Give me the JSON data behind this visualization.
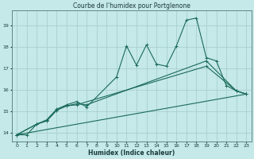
{
  "bg_color": "#c5e8e8",
  "grid_color": "#a8d0d0",
  "line_color": "#1a6b5a",
  "title": "Courbe de l'humidex pour Portglenone",
  "xlabel": "Humidex (Indice chaleur)",
  "xlim": [
    -0.5,
    23.5
  ],
  "ylim": [
    13.6,
    19.7
  ],
  "yticks": [
    14,
    15,
    16,
    17,
    18,
    19
  ],
  "xticks": [
    0,
    1,
    2,
    3,
    4,
    5,
    6,
    7,
    8,
    9,
    10,
    11,
    12,
    13,
    14,
    15,
    16,
    17,
    18,
    19,
    20,
    21,
    22,
    23
  ],
  "line1_x": [
    0,
    1,
    2,
    3,
    4,
    5,
    6,
    7,
    10,
    11,
    12,
    13,
    14,
    15,
    16,
    17,
    18,
    19,
    20,
    21,
    22,
    23
  ],
  "line1_y": [
    13.9,
    13.9,
    14.4,
    14.6,
    15.1,
    15.3,
    15.45,
    15.2,
    16.6,
    18.05,
    17.15,
    18.1,
    17.2,
    17.1,
    18.05,
    19.25,
    19.35,
    17.5,
    17.35,
    16.2,
    15.95,
    15.8
  ],
  "line2_x": [
    0,
    2,
    3,
    4,
    5,
    6,
    7,
    19,
    22,
    23
  ],
  "line2_y": [
    13.9,
    14.4,
    14.55,
    15.05,
    15.25,
    15.35,
    15.3,
    17.35,
    15.95,
    15.8
  ],
  "line3_x": [
    0,
    2,
    3,
    4,
    5,
    6,
    19,
    22,
    23
  ],
  "line3_y": [
    13.9,
    14.4,
    14.55,
    15.05,
    15.25,
    15.3,
    17.1,
    15.95,
    15.8
  ],
  "line4_x": [
    0,
    23
  ],
  "line4_y": [
    13.9,
    15.8
  ]
}
